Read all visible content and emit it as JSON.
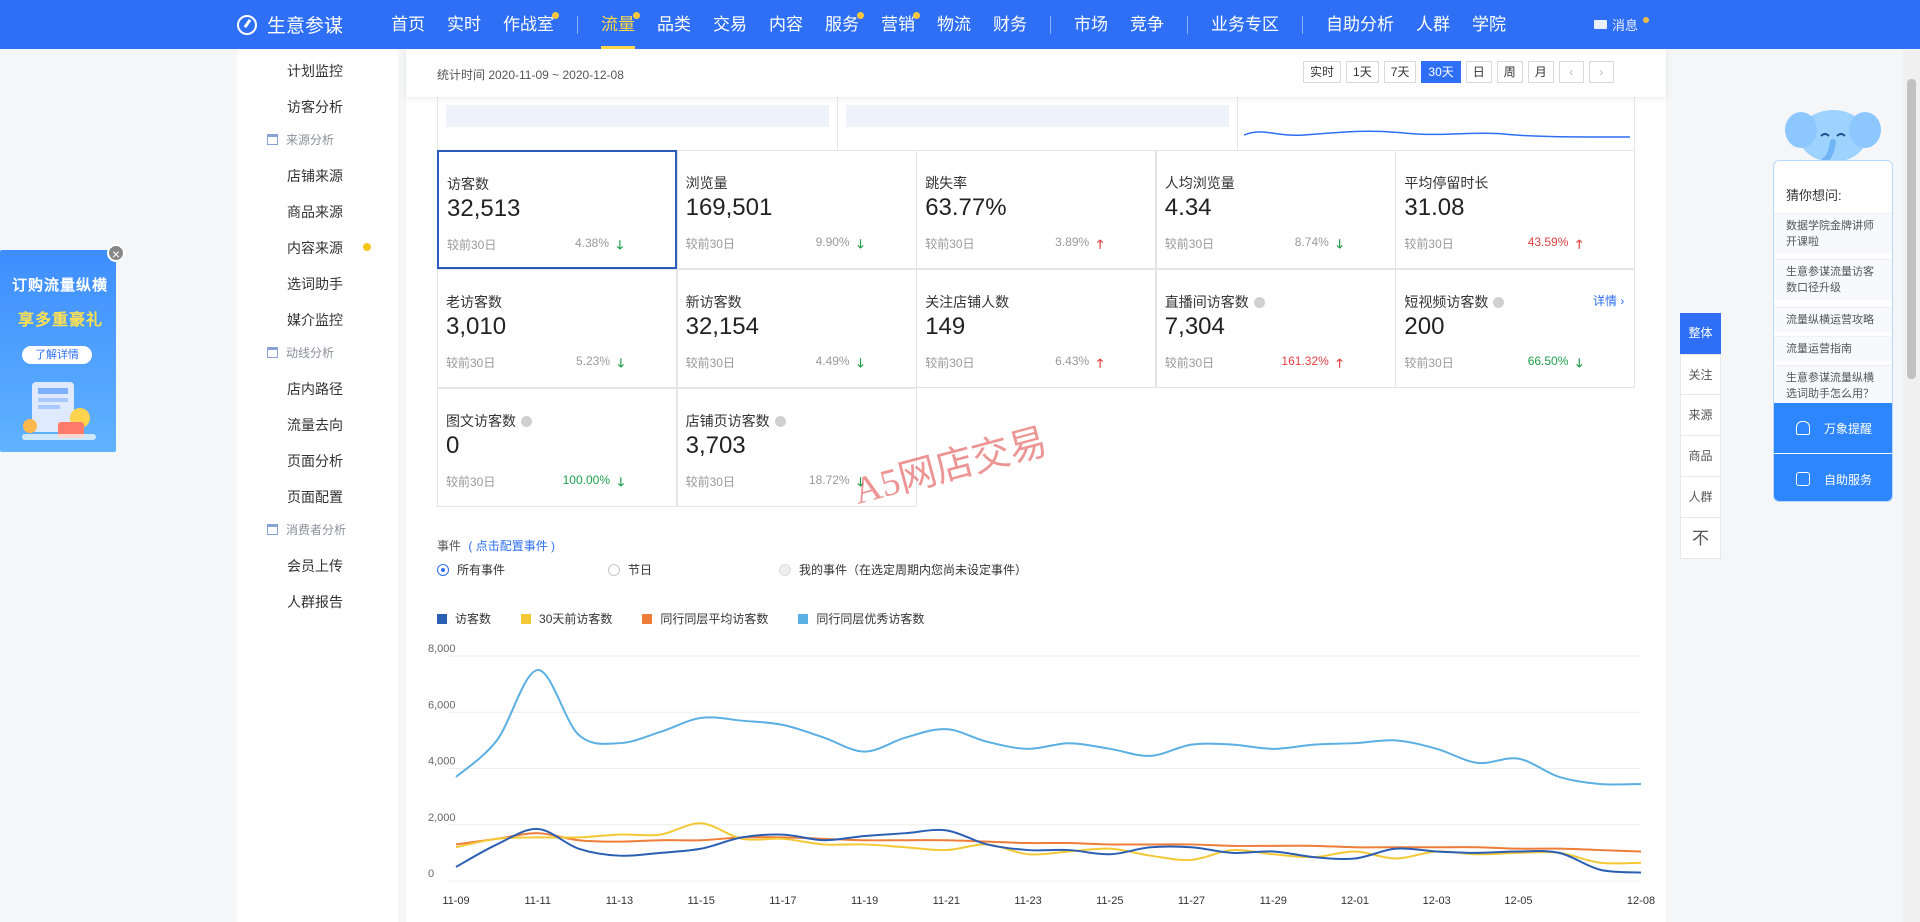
{
  "topnav": {
    "brand": "生意参谋",
    "items": [
      {
        "label": "首页",
        "dot": false,
        "active": false
      },
      {
        "label": "实时",
        "dot": false,
        "active": false
      },
      {
        "label": "作战室",
        "dot": true,
        "active": false
      },
      {
        "sep": true
      },
      {
        "label": "流量",
        "dot": true,
        "active": true
      },
      {
        "label": "品类",
        "dot": false,
        "active": false
      },
      {
        "label": "交易",
        "dot": false,
        "active": false
      },
      {
        "label": "内容",
        "dot": false,
        "active": false
      },
      {
        "label": "服务",
        "dot": true,
        "active": false
      },
      {
        "label": "营销",
        "dot": true,
        "active": false
      },
      {
        "label": "物流",
        "dot": false,
        "active": false
      },
      {
        "label": "财务",
        "dot": false,
        "active": false
      },
      {
        "sep": true
      },
      {
        "label": "市场",
        "dot": false,
        "active": false
      },
      {
        "label": "竞争",
        "dot": false,
        "active": false
      },
      {
        "sep": true
      },
      {
        "label": "业务专区",
        "dot": false,
        "active": false
      },
      {
        "sep": true
      },
      {
        "label": "自助分析",
        "dot": false,
        "active": false
      },
      {
        "label": "人群",
        "dot": false,
        "active": false
      },
      {
        "label": "学院",
        "dot": false,
        "active": false
      }
    ],
    "message": "消息"
  },
  "sidebar": {
    "items": [
      {
        "label": "计划监控",
        "type": "item"
      },
      {
        "label": "访客分析",
        "type": "item"
      },
      {
        "label": "来源分析",
        "type": "group"
      },
      {
        "label": "店铺来源",
        "type": "item"
      },
      {
        "label": "商品来源",
        "type": "item"
      },
      {
        "label": "内容来源",
        "type": "item",
        "dot": true
      },
      {
        "label": "选词助手",
        "type": "item"
      },
      {
        "label": "媒介监控",
        "type": "item"
      },
      {
        "label": "动线分析",
        "type": "group"
      },
      {
        "label": "店内路径",
        "type": "item"
      },
      {
        "label": "流量去向",
        "type": "item"
      },
      {
        "label": "页面分析",
        "type": "item"
      },
      {
        "label": "页面配置",
        "type": "item"
      },
      {
        "label": "消费者分析",
        "type": "group"
      },
      {
        "label": "会员上传",
        "type": "item"
      },
      {
        "label": "人群报告",
        "type": "item"
      }
    ]
  },
  "statbar": {
    "time": "统计时间 2020-11-09 ~ 2020-12-08",
    "periods": [
      "实时",
      "1天",
      "7天",
      "30天",
      "日",
      "周",
      "月"
    ],
    "active_period": "30天",
    "prev": "‹",
    "next": "›"
  },
  "metrics": [
    {
      "name": "访客数",
      "value": "32,513",
      "compare": "较前30日",
      "pct": "4.38%",
      "dir": "down",
      "pct_color": "gray",
      "selected": true
    },
    {
      "name": "浏览量",
      "value": "169,501",
      "compare": "较前30日",
      "pct": "9.90%",
      "dir": "down",
      "pct_color": "gray"
    },
    {
      "name": "跳失率",
      "value": "63.77%",
      "compare": "较前30日",
      "pct": "3.89%",
      "dir": "up",
      "pct_color": "gray"
    },
    {
      "name": "人均浏览量",
      "value": "4.34",
      "compare": "较前30日",
      "pct": "8.74%",
      "dir": "down",
      "pct_color": "gray"
    },
    {
      "name": "平均停留时长",
      "value": "31.08",
      "compare": "较前30日",
      "pct": "43.59%",
      "dir": "up",
      "pct_color": "red"
    },
    {
      "name": "老访客数",
      "value": "3,010",
      "compare": "较前30日",
      "pct": "5.23%",
      "dir": "down",
      "pct_color": "gray"
    },
    {
      "name": "新访客数",
      "value": "32,154",
      "compare": "较前30日",
      "pct": "4.49%",
      "dir": "down",
      "pct_color": "gray"
    },
    {
      "name": "关注店铺人数",
      "value": "149",
      "compare": "较前30日",
      "pct": "6.43%",
      "dir": "up",
      "pct_color": "gray"
    },
    {
      "name": "直播间访客数",
      "value": "7,304",
      "compare": "较前30日",
      "pct": "161.32%",
      "dir": "up",
      "pct_color": "red",
      "info": true
    },
    {
      "name": "短视频访客数",
      "value": "200",
      "compare": "较前30日",
      "pct": "66.50%",
      "dir": "down",
      "pct_color": "green",
      "info": true,
      "detail": "详情 ›"
    },
    {
      "name": "图文访客数",
      "value": "0",
      "compare": "较前30日",
      "pct": "100.00%",
      "dir": "down",
      "pct_color": "green",
      "info": true
    },
    {
      "name": "店铺页访客数",
      "value": "3,703",
      "compare": "较前30日",
      "pct": "18.72%",
      "dir": "down",
      "pct_color": "gray",
      "info": true
    }
  ],
  "arrows": {
    "up": "🡑",
    "down": "🡓"
  },
  "watermark": "A5网店交易",
  "events": {
    "title": "事件",
    "config_link": "( 点击配置事件 )",
    "options": [
      {
        "label": "所有事件",
        "state": "on"
      },
      {
        "label": "节日",
        "state": "off"
      },
      {
        "label": "我的事件（在选定周期内您尚未设定事件）",
        "state": "dis"
      }
    ]
  },
  "chart_data": {
    "type": "line",
    "ylim": [
      0,
      8000
    ],
    "yticks": [
      "0",
      "2,000",
      "4,000",
      "6,000",
      "8,000"
    ],
    "ytick_values": [
      0,
      2000,
      4000,
      6000,
      8000
    ],
    "x": [
      "11-09",
      "11-10",
      "11-11",
      "11-12",
      "11-13",
      "11-14",
      "11-15",
      "11-16",
      "11-17",
      "11-18",
      "11-19",
      "11-20",
      "11-21",
      "11-22",
      "11-23",
      "11-24",
      "11-25",
      "11-26",
      "11-27",
      "11-28",
      "11-29",
      "11-30",
      "12-01",
      "12-02",
      "12-03",
      "12-04",
      "12-05",
      "12-06",
      "12-07",
      "12-08"
    ],
    "xtick_labels": [
      "11-09",
      "11-11",
      "11-13",
      "11-15",
      "11-17",
      "11-19",
      "11-21",
      "11-23",
      "11-25",
      "11-27",
      "11-29",
      "12-01",
      "12-03",
      "12-05",
      "12-08"
    ],
    "series": [
      {
        "name": "访客数",
        "color": "#2b5fb4",
        "values": [
          500,
          1300,
          1850,
          1150,
          900,
          1000,
          1150,
          1550,
          1650,
          1450,
          1600,
          1700,
          1800,
          1300,
          1100,
          1100,
          950,
          1200,
          1200,
          1000,
          1050,
          850,
          800,
          1150,
          1050,
          1000,
          1050,
          1000,
          400,
          300
        ]
      },
      {
        "name": "30天前访客数",
        "color": "#f2c935",
        "values": [
          1200,
          1500,
          1550,
          1550,
          1650,
          1650,
          2050,
          1500,
          1500,
          1300,
          1300,
          1200,
          1100,
          1300,
          950,
          1050,
          1150,
          900,
          750,
          1100,
          950,
          850,
          1050,
          800,
          1050,
          950,
          1000,
          1000,
          650,
          650
        ]
      },
      {
        "name": "同行同层平均访客数",
        "color": "#ee7d3a",
        "values": [
          1300,
          1500,
          1700,
          1450,
          1400,
          1450,
          1450,
          1550,
          1550,
          1500,
          1450,
          1450,
          1450,
          1400,
          1350,
          1350,
          1300,
          1300,
          1300,
          1250,
          1250,
          1250,
          1200,
          1200,
          1200,
          1200,
          1150,
          1150,
          1100,
          1050
        ]
      },
      {
        "name": "同行同层优秀访客数",
        "color": "#5aafe3",
        "values": [
          3700,
          5000,
          7500,
          5200,
          4900,
          5300,
          5800,
          5700,
          5550,
          5100,
          4600,
          5100,
          5400,
          4950,
          4700,
          4900,
          4700,
          4450,
          4850,
          4850,
          4700,
          4850,
          4900,
          5000,
          4700,
          4200,
          4350,
          3700,
          3450,
          3450
        ]
      }
    ]
  },
  "sidetabs": [
    "整体",
    "关注",
    "来源",
    "商品",
    "人群",
    "不"
  ],
  "helper": {
    "title": "猜你想问:",
    "questions": [
      "数据学院金牌讲师开课啦",
      "生意参谋流量访客数口径升级",
      "流量纵横运营攻略",
      "流量运营指南",
      "生意参谋流量纵横选词助手怎么用？"
    ],
    "buttons": [
      "万象提醒",
      "自助服务"
    ]
  },
  "ad": {
    "line1": "订购流量纵横",
    "line2": "享多重豪礼",
    "button": "了解详情",
    "close": "×"
  }
}
